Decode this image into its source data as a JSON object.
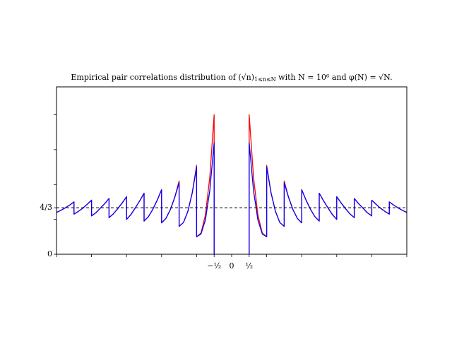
{
  "chart_data": {
    "type": "line",
    "title": "Empirical pair correlations distribution of (√n)",
    "title_subscript": "1≤n≤N",
    "title_rest": " with N = 10⁶ and φ(N) = √N.",
    "x": [
      -5,
      -4.875,
      -4.75,
      -4.625,
      -4.5,
      -4.5,
      -4.375,
      -4.25,
      -4.125,
      -4,
      -4,
      -3.875,
      -3.75,
      -3.625,
      -3.5,
      -3.5,
      -3.375,
      -3.25,
      -3.125,
      -3,
      -3,
      -2.875,
      -2.75,
      -2.625,
      -2.5,
      -2.5,
      -2.375,
      -2.25,
      -2.125,
      -2,
      -2,
      -1.875,
      -1.75,
      -1.625,
      -1.5,
      -1.5,
      -1.375,
      -1.25,
      -1.125,
      -1,
      -1,
      -0.875,
      -0.75,
      -0.625,
      -0.5,
      -0.5,
      0,
      0.5,
      0.5,
      0.625,
      0.75,
      0.875,
      1,
      1,
      1.125,
      1.25,
      1.375,
      1.5,
      1.5,
      1.625,
      1.75,
      1.875,
      2,
      2,
      2.125,
      2.25,
      2.375,
      2.5,
      2.5,
      2.625,
      2.75,
      2.875,
      3,
      3,
      3.125,
      3.25,
      3.375,
      3.5,
      3.5,
      3.625,
      3.75,
      3.875,
      4,
      4,
      4.125,
      4.25,
      4.375,
      4.5,
      4.5,
      4.625,
      4.75,
      4.875,
      5
    ],
    "series": [
      {
        "color": "#ff0000",
        "values": [
          1.2,
          1.26,
          1.33,
          1.41,
          1.5,
          1.15,
          1.23,
          1.32,
          1.43,
          1.55,
          1.1,
          1.19,
          1.32,
          1.45,
          1.6,
          1.05,
          1.16,
          1.31,
          1.47,
          1.65,
          1.0,
          1.14,
          1.33,
          1.53,
          1.75,
          0.95,
          1.08,
          1.29,
          1.55,
          1.85,
          0.9,
          1.03,
          1.28,
          1.63,
          2.1,
          0.8,
          0.91,
          1.23,
          1.76,
          2.55,
          0.5,
          0.61,
          1.12,
          2.2,
          4.0,
          0,
          null,
          0,
          4.0,
          2.2,
          1.12,
          0.61,
          0.5,
          2.55,
          1.76,
          1.23,
          0.91,
          0.8,
          2.1,
          1.63,
          1.28,
          1.03,
          0.9,
          1.85,
          1.55,
          1.29,
          1.08,
          0.95,
          1.75,
          1.53,
          1.33,
          1.14,
          1.0,
          1.65,
          1.47,
          1.31,
          1.16,
          1.05,
          1.6,
          1.45,
          1.32,
          1.19,
          1.1,
          1.55,
          1.43,
          1.32,
          1.23,
          1.15,
          1.5,
          1.41,
          1.33,
          1.26,
          1.2
        ]
      },
      {
        "color": "#0000ff",
        "values": [
          1.2,
          1.26,
          1.33,
          1.41,
          1.5,
          1.15,
          1.23,
          1.32,
          1.43,
          1.55,
          1.1,
          1.19,
          1.32,
          1.45,
          1.6,
          1.05,
          1.16,
          1.31,
          1.47,
          1.65,
          1.0,
          1.14,
          1.33,
          1.53,
          1.75,
          0.95,
          1.08,
          1.29,
          1.55,
          1.85,
          0.9,
          1.03,
          1.28,
          1.63,
          2.05,
          0.8,
          0.91,
          1.23,
          1.76,
          2.5,
          0.5,
          0.58,
          0.98,
          1.82,
          3.2,
          0,
          null,
          0,
          3.2,
          1.82,
          0.98,
          0.58,
          0.5,
          2.5,
          1.76,
          1.23,
          0.91,
          0.8,
          2.05,
          1.63,
          1.28,
          1.03,
          0.9,
          1.85,
          1.55,
          1.29,
          1.08,
          0.95,
          1.75,
          1.53,
          1.33,
          1.14,
          1.0,
          1.65,
          1.47,
          1.31,
          1.16,
          1.05,
          1.6,
          1.45,
          1.32,
          1.19,
          1.1,
          1.55,
          1.43,
          1.32,
          1.23,
          1.15,
          1.5,
          1.41,
          1.33,
          1.26,
          1.2
        ]
      }
    ],
    "xlim": [
      -5,
      5
    ],
    "ylim": [
      0,
      4.8
    ],
    "xticks": [
      {
        "value": -0.5,
        "label": "−½"
      },
      0,
      {
        "value": 0.5,
        "label": "½"
      }
    ],
    "xticks_minor": [
      -5,
      -4,
      -3,
      -2,
      -1,
      1,
      2,
      3,
      4,
      5
    ],
    "yticks": [
      0,
      {
        "value": 1.3333,
        "label": "4/3"
      }
    ],
    "yticks_minor": [
      1,
      2,
      3,
      4
    ],
    "hline": {
      "value": 1.3333,
      "color": "#000000",
      "dashed": true
    }
  }
}
